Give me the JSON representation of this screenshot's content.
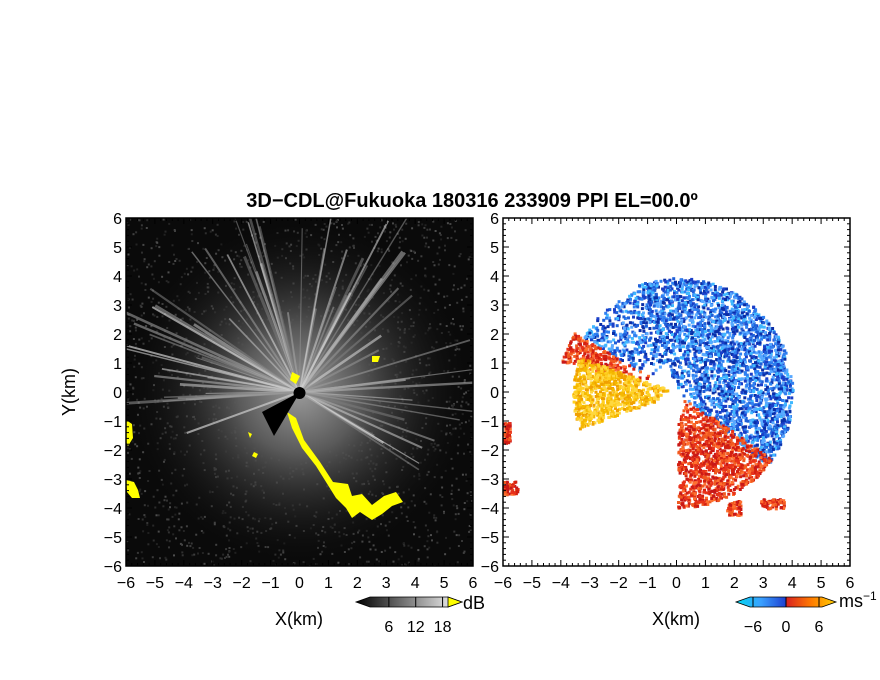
{
  "title": "3D−CDL@Fukuoka 180316 233909 PPI EL=00.0º",
  "chart_data": [
    {
      "type": "heatmap",
      "panel": "reflectivity",
      "xlabel": "X(km)",
      "ylabel": "Y(km)",
      "xlim": [
        -6,
        6
      ],
      "ylim": [
        -6,
        6
      ],
      "xticks": [
        "−6",
        "−5",
        "−4",
        "−3",
        "−2",
        "−1",
        "0",
        "1",
        "2",
        "3",
        "4",
        "5",
        "6"
      ],
      "yticks": [
        "−6",
        "−5",
        "−4",
        "−3",
        "−2",
        "−1",
        "0",
        "1",
        "2",
        "3",
        "4",
        "5",
        "6"
      ],
      "colorbar": {
        "unit": "dB",
        "ticks": [
          "6",
          "12",
          "18"
        ],
        "range": [
          0,
          21
        ]
      },
      "colors": {
        "background": "#0a0a0a",
        "high": "#ffffff",
        "saturated": "#ffff00"
      }
    },
    {
      "type": "heatmap",
      "panel": "doppler-velocity",
      "xlabel": "X(km)",
      "ylabel": "",
      "xlim": [
        -6,
        6
      ],
      "ylim": [
        -6,
        6
      ],
      "xticks": [
        "−6",
        "−5",
        "−4",
        "−3",
        "−2",
        "−1",
        "0",
        "1",
        "2",
        "3",
        "4",
        "5",
        "6"
      ],
      "yticks": [
        "−6",
        "−5",
        "−4",
        "−3",
        "−2",
        "−1",
        "0",
        "1",
        "2",
        "3",
        "4",
        "5",
        "6"
      ],
      "colorbar": {
        "unit": "ms",
        "unit_sup": "−1",
        "ticks": [
          "−6",
          "0",
          "6"
        ],
        "range": [
          -8,
          8
        ]
      },
      "colors": {
        "negative": "#1e5fd8",
        "positive": "#e8321a",
        "far_positive": "#f5b800",
        "background": "#ffffff"
      }
    }
  ]
}
